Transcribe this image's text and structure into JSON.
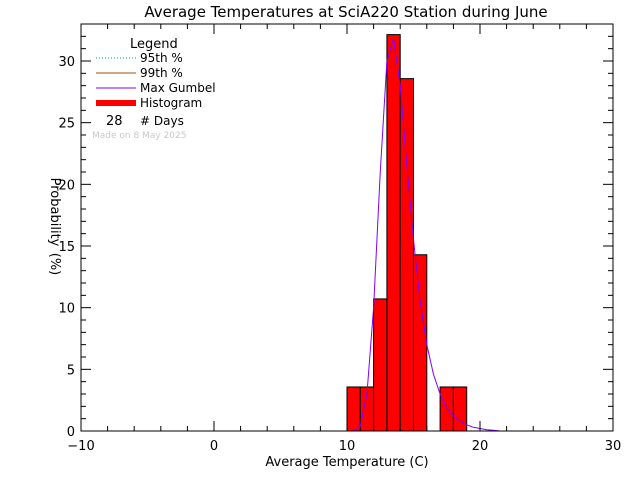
{
  "chart_data": {
    "type": "bar",
    "title": "Average Temperatures at SciA220 Station during June",
    "xlabel": "Average Temperature (C)",
    "ylabel": "Probability",
    "ylabel_unit": "(%)",
    "xlim": [
      -10,
      30
    ],
    "ylim": [
      0,
      33
    ],
    "x_ticks": [
      -10,
      0,
      10,
      20,
      30
    ],
    "y_ticks": [
      0,
      5,
      10,
      15,
      20,
      25,
      30
    ],
    "grid": false,
    "legend_placement": "top-left",
    "histogram": {
      "bins": [
        {
          "x0": 10.0,
          "x1": 11.0,
          "value": 3.57
        },
        {
          "x0": 11.0,
          "x1": 12.0,
          "value": 3.57
        },
        {
          "x0": 12.0,
          "x1": 13.0,
          "value": 10.71
        },
        {
          "x0": 13.0,
          "x1": 14.0,
          "value": 32.14
        },
        {
          "x0": 14.0,
          "x1": 15.0,
          "value": 28.57
        },
        {
          "x0": 15.0,
          "x1": 16.0,
          "value": 14.29
        },
        {
          "x0": 17.0,
          "x1": 18.0,
          "value": 3.57
        },
        {
          "x0": 18.0,
          "x1": 19.0,
          "value": 3.57
        }
      ],
      "color": "#ff0000"
    },
    "gumbel_curve": {
      "x": [
        10.5,
        11.0,
        11.5,
        12.0,
        12.5,
        13.0,
        13.5,
        14.0,
        14.5,
        15.0,
        15.5,
        16.0,
        16.5,
        17.0,
        17.5,
        18.0,
        18.5,
        19.0,
        19.5,
        20.0,
        20.5,
        21.0,
        21.5
      ],
      "y": [
        0.0,
        0.4,
        3.0,
        10.0,
        21.0,
        30.0,
        31.8,
        28.0,
        21.5,
        15.5,
        10.5,
        7.0,
        4.6,
        3.0,
        1.9,
        1.2,
        0.8,
        0.5,
        0.3,
        0.2,
        0.1,
        0.06,
        0.0
      ],
      "color": "#8000ff"
    },
    "legend": {
      "title": "Legend",
      "entries": [
        {
          "label": "95th %",
          "color": "#00a0a0",
          "style": "dotted"
        },
        {
          "label": "99th %",
          "color": "#a05000",
          "style": "solid"
        },
        {
          "label": "Max Gumbel",
          "color": "#8000ff",
          "style": "solid"
        },
        {
          "label": "Histogram",
          "color": "#ff0000",
          "style": "thick"
        }
      ],
      "days_count": "28",
      "days_label": "# Days"
    },
    "annotation": "Made on 8 May 2025"
  }
}
